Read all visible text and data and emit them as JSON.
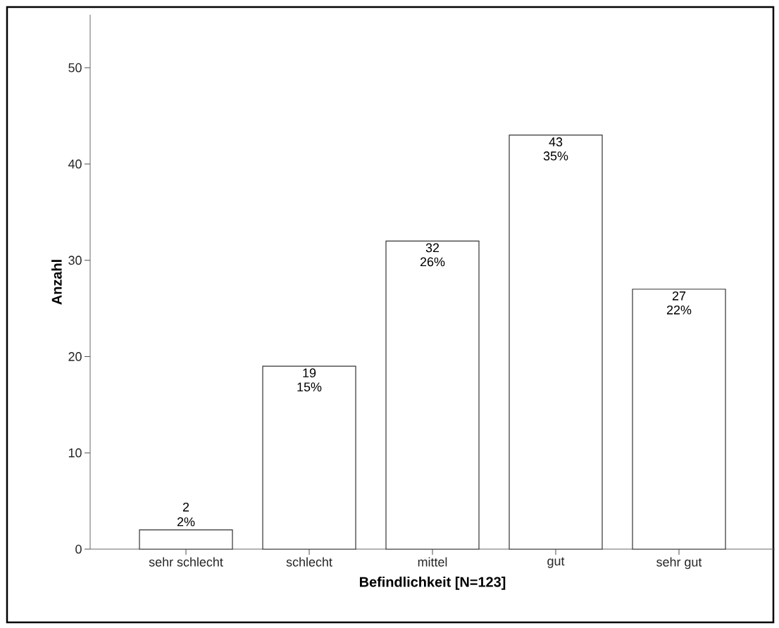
{
  "chart_data": {
    "type": "bar",
    "xlabel": "Befindlichkeit [N=123]",
    "ylabel": "Anzahl",
    "categories": [
      "sehr schlecht",
      "schlecht",
      "mittel",
      "gut",
      "sehr gut"
    ],
    "values": [
      2,
      19,
      32,
      43,
      27
    ],
    "color": "#ffffff",
    "ylim": [
      0,
      55.5
    ],
    "yticks": [
      0,
      10,
      20,
      30,
      40,
      50
    ],
    "grid": false,
    "data_labels": true,
    "annotations": [
      {
        "text": "2%",
        "x": "sehr schlecht",
        "y": 2
      },
      {
        "text": "15%",
        "x": "schlecht",
        "y": 19
      },
      {
        "text": "26%",
        "x": "mittel",
        "y": 32
      },
      {
        "text": "35%",
        "x": "gut",
        "y": 43
      },
      {
        "text": "22%",
        "x": "sehr gut",
        "y": 27
      }
    ]
  }
}
